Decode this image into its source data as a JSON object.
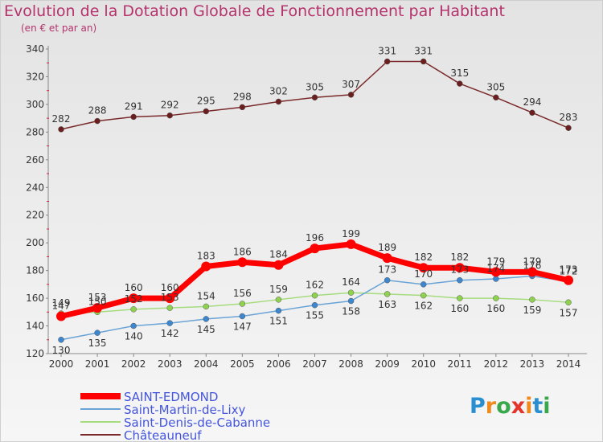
{
  "header": {
    "title": "Evolution de la Dotation Globale de Fonctionnement par Habitant",
    "subtitle": "(en € et par an)"
  },
  "logo": {
    "text": "Proxiti",
    "letters": [
      "P",
      "r",
      "o",
      "x",
      "i",
      "t",
      "i"
    ],
    "colors": [
      "#2a8fd0",
      "#f08a1c",
      "#3aa84a",
      "#e4342b",
      "#f08a1c",
      "#2a8fd0",
      "#3aa84a"
    ]
  },
  "chart_data": {
    "type": "line",
    "title": "Evolution de la Dotation Globale de Fonctionnement par Habitant",
    "subtitle": "(en € et par an)",
    "x": [
      "2000",
      "2001",
      "2002",
      "2003",
      "2004",
      "2005",
      "2006",
      "2007",
      "2008",
      "2009",
      "2010",
      "2011",
      "2012",
      "2013",
      "2014"
    ],
    "y_ticks": [
      120,
      140,
      160,
      180,
      200,
      220,
      240,
      260,
      280,
      300,
      320,
      340
    ],
    "ylim": [
      120,
      340
    ],
    "grid": false,
    "legend_position": "bottom-left",
    "series": [
      {
        "name": "SAINT-EDMOND",
        "color": "#ff0000",
        "marker": "#ff0000",
        "values": [
          147,
          153,
          160,
          160,
          183,
          186,
          184,
          196,
          199,
          189,
          182,
          182,
          179,
          179,
          173
        ]
      },
      {
        "name": "Saint-Martin-de-Lixy",
        "color": "#6aa3d6",
        "marker": "#3c87cf",
        "values": [
          130,
          135,
          140,
          142,
          145,
          147,
          151,
          155,
          158,
          173,
          170,
          173,
          174,
          176,
          172
        ]
      },
      {
        "name": "Saint-Denis-de-Cabanne",
        "color": "#a6dc7e",
        "marker": "#8fd24f",
        "values": [
          149,
          150,
          152,
          153,
          154,
          156,
          159,
          162,
          164,
          163,
          162,
          160,
          160,
          159,
          157
        ]
      },
      {
        "name": "Châteauneuf",
        "color": "#7a2a2a",
        "marker": "#6b1e1e",
        "values": [
          282,
          288,
          291,
          292,
          295,
          298,
          302,
          305,
          307,
          331,
          331,
          315,
          305,
          294,
          283
        ]
      }
    ]
  }
}
